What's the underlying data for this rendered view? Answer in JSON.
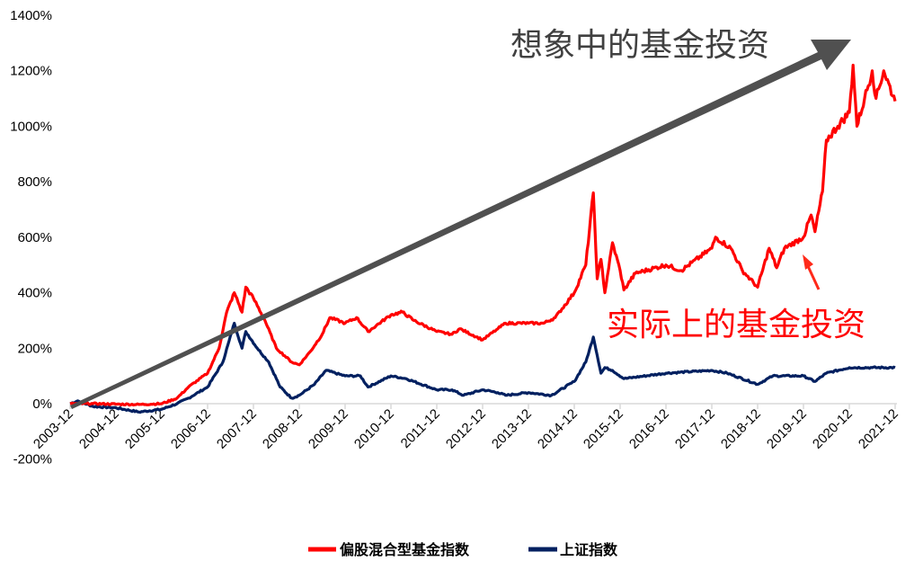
{
  "chart_data": {
    "type": "line",
    "title": "",
    "xlabel": "",
    "ylabel": "",
    "ylim": [
      -200,
      1400
    ],
    "yticks": [
      "-200%",
      "0%",
      "200%",
      "400%",
      "600%",
      "800%",
      "1000%",
      "1200%",
      "1400%"
    ],
    "ytick_values": [
      -200,
      0,
      200,
      400,
      600,
      800,
      1000,
      1200,
      1400
    ],
    "xticks": [
      "2003-12",
      "2004-12",
      "2005-12",
      "2006-12",
      "2007-12",
      "2008-12",
      "2009-12",
      "2010-12",
      "2011-12",
      "2012-12",
      "2013-12",
      "2014-12",
      "2015-12",
      "2016-12",
      "2017-12",
      "2018-12",
      "2019-12",
      "2020-12",
      "2021-12"
    ],
    "grid": false,
    "legend_position": "bottom",
    "series": [
      {
        "name": "偏股混合型基金指数",
        "color": "#ff0000",
        "x": [
          "2003-12",
          "2004-06",
          "2005-01",
          "2005-06",
          "2005-12",
          "2006-04",
          "2006-07",
          "2006-12",
          "2007-03",
          "2007-05",
          "2007-07",
          "2007-09",
          "2007-10",
          "2007-12",
          "2008-03",
          "2008-06",
          "2008-10",
          "2008-12",
          "2009-03",
          "2009-06",
          "2009-08",
          "2009-12",
          "2010-03",
          "2010-06",
          "2010-12",
          "2011-03",
          "2011-06",
          "2011-12",
          "2012-04",
          "2012-06",
          "2012-12",
          "2013-04",
          "2013-06",
          "2013-12",
          "2014-04",
          "2014-07",
          "2014-12",
          "2015-03",
          "2015-05",
          "2015-06",
          "2015-07",
          "2015-08",
          "2015-10",
          "2015-12",
          "2016-01",
          "2016-04",
          "2016-12",
          "2017-04",
          "2017-12",
          "2018-01",
          "2018-05",
          "2018-08",
          "2018-12",
          "2019-03",
          "2019-05",
          "2019-07",
          "2019-12",
          "2020-02",
          "2020-03",
          "2020-05",
          "2020-06",
          "2020-09",
          "2020-12",
          "2021-01",
          "2021-02",
          "2021-04",
          "2021-06",
          "2021-07",
          "2021-09",
          "2021-12"
        ],
        "values": [
          0,
          0,
          -2,
          -3,
          0,
          20,
          60,
          110,
          200,
          330,
          400,
          330,
          420,
          380,
          300,
          200,
          150,
          140,
          190,
          250,
          310,
          290,
          310,
          260,
          320,
          330,
          300,
          260,
          250,
          270,
          230,
          270,
          290,
          290,
          290,
          310,
          400,
          500,
          760,
          450,
          520,
          400,
          580,
          480,
          410,
          470,
          500,
          480,
          560,
          600,
          560,
          480,
          420,
          560,
          490,
          560,
          600,
          680,
          620,
          765,
          950,
          1000,
          1050,
          1220,
          1000,
          1100,
          1200,
          1100,
          1200,
          1090
        ]
      },
      {
        "name": "上证指数",
        "color": "#002060",
        "x": [
          "2003-12",
          "2004-02",
          "2004-06",
          "2004-12",
          "2005-06",
          "2005-12",
          "2006-04",
          "2006-07",
          "2006-12",
          "2007-04",
          "2007-07",
          "2007-09",
          "2007-10",
          "2008-01",
          "2008-04",
          "2008-07",
          "2008-10",
          "2008-12",
          "2009-04",
          "2009-07",
          "2009-12",
          "2010-04",
          "2010-06",
          "2010-12",
          "2011-04",
          "2011-12",
          "2012-04",
          "2012-07",
          "2012-12",
          "2013-04",
          "2013-06",
          "2013-12",
          "2014-06",
          "2014-12",
          "2015-03",
          "2015-05",
          "2015-07",
          "2015-08",
          "2015-10",
          "2016-01",
          "2016-12",
          "2017-12",
          "2018-04",
          "2018-12",
          "2019-04",
          "2019-12",
          "2020-03",
          "2020-06",
          "2020-12",
          "2021-06",
          "2021-12"
        ],
        "values": [
          0,
          10,
          -10,
          -15,
          -30,
          -20,
          0,
          20,
          60,
          150,
          290,
          200,
          260,
          200,
          150,
          60,
          20,
          30,
          70,
          120,
          100,
          100,
          60,
          100,
          90,
          50,
          50,
          30,
          50,
          40,
          30,
          40,
          30,
          80,
          150,
          240,
          110,
          130,
          120,
          90,
          110,
          120,
          110,
          70,
          100,
          100,
          80,
          110,
          130,
          130,
          130
        ]
      }
    ],
    "annotations": [
      {
        "text": "想象中的基金投资",
        "color": "#404040"
      },
      {
        "text": "实际上的基金投资",
        "color": "#ff0000"
      }
    ]
  }
}
